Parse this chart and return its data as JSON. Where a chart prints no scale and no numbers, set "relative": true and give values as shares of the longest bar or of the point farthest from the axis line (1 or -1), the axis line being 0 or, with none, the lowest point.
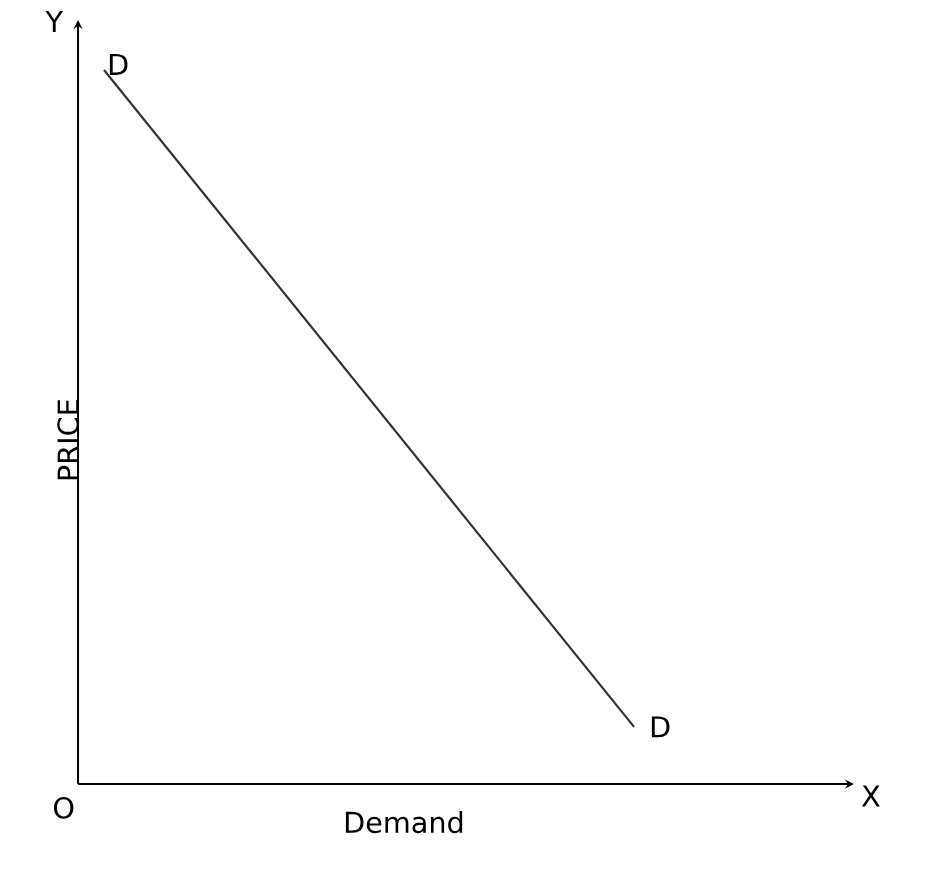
{
  "chart_data": {
    "type": "line",
    "relative": true,
    "xlabel": "Demand",
    "ylabel": "PRICE",
    "categories": [
      null,
      null
    ],
    "series": [
      {
        "color": "#333333",
        "values": [
          1,
          0.08
        ]
      }
    ],
    "annotations": [
      "D",
      "D",
      "O",
      "Y",
      "X"
    ]
  }
}
